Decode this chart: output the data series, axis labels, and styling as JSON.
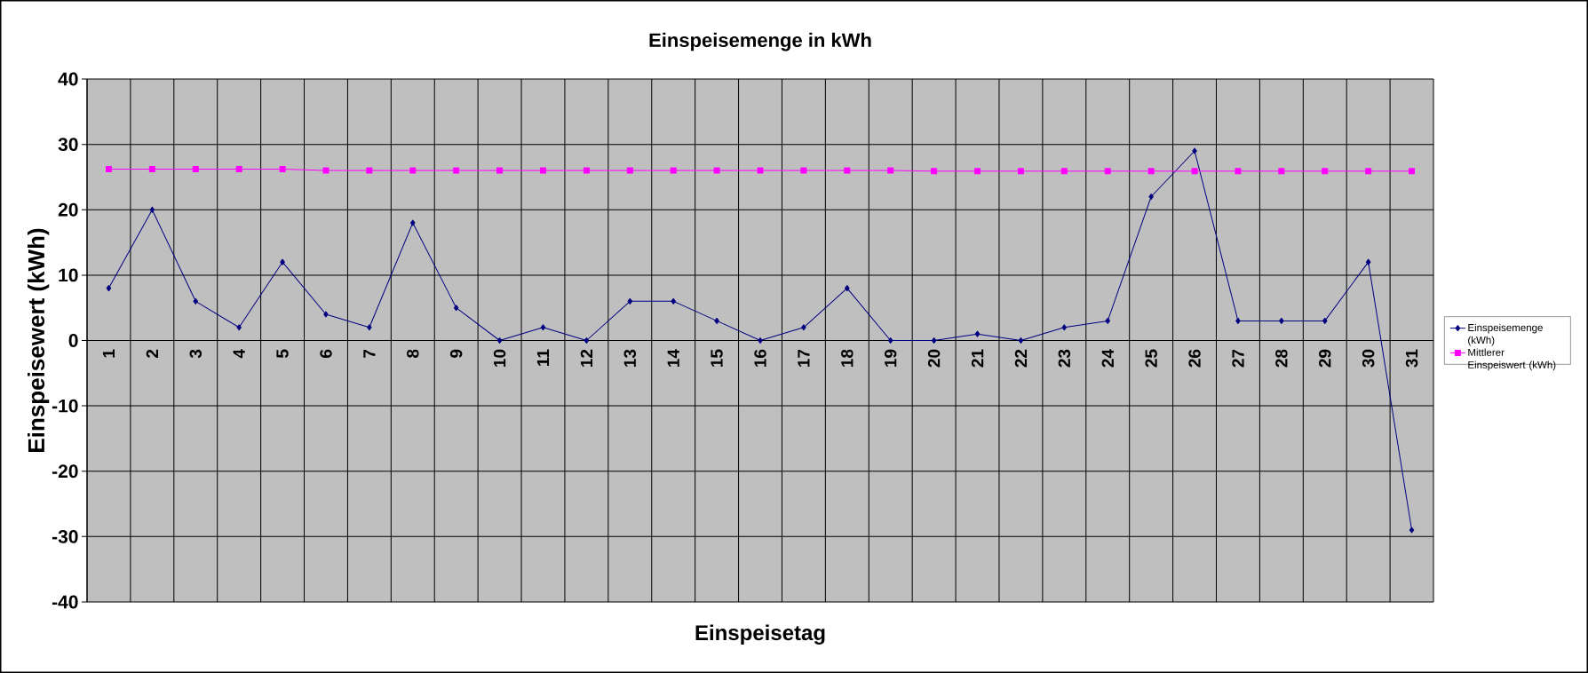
{
  "chart_data": {
    "type": "line",
    "title": "Einspeisemenge in kWh",
    "xlabel": "Einspeisetag",
    "ylabel": "Einspeisewert  (kWh)",
    "categories": [
      "1",
      "2",
      "3",
      "4",
      "5",
      "6",
      "7",
      "8",
      "9",
      "10",
      "11",
      "12",
      "13",
      "14",
      "15",
      "16",
      "17",
      "18",
      "19",
      "20",
      "21",
      "22",
      "23",
      "24",
      "25",
      "26",
      "27",
      "28",
      "29",
      "30",
      "31"
    ],
    "series": [
      {
        "name": "Einspeisemenge (kWh)",
        "color": "#000080",
        "marker": "diamond",
        "values": [
          8,
          20,
          6,
          2,
          12,
          4,
          2,
          18,
          5,
          0,
          2,
          0,
          6,
          6,
          3,
          0,
          2,
          8,
          0,
          0,
          1,
          0,
          2,
          3,
          22,
          29,
          3,
          3,
          3,
          12,
          -29
        ]
      },
      {
        "name": "Mittlerer Einspeiswert (kWh)",
        "color": "#ff00ff",
        "marker": "square",
        "values": [
          26.2,
          26.2,
          26.2,
          26.2,
          26.2,
          26.0,
          26.0,
          26.0,
          26.0,
          26.0,
          26.0,
          26.0,
          26.0,
          26.0,
          26.0,
          26.0,
          26.0,
          26.0,
          26.0,
          25.9,
          25.9,
          25.9,
          25.9,
          25.9,
          25.9,
          25.9,
          25.9,
          25.9,
          25.9,
          25.9,
          25.9
        ]
      }
    ],
    "ylim": [
      -40,
      40
    ],
    "yticks": [
      -40,
      -30,
      -20,
      -10,
      0,
      10,
      20,
      30,
      40
    ],
    "grid": true,
    "legend": "right",
    "line_style": "solid"
  }
}
